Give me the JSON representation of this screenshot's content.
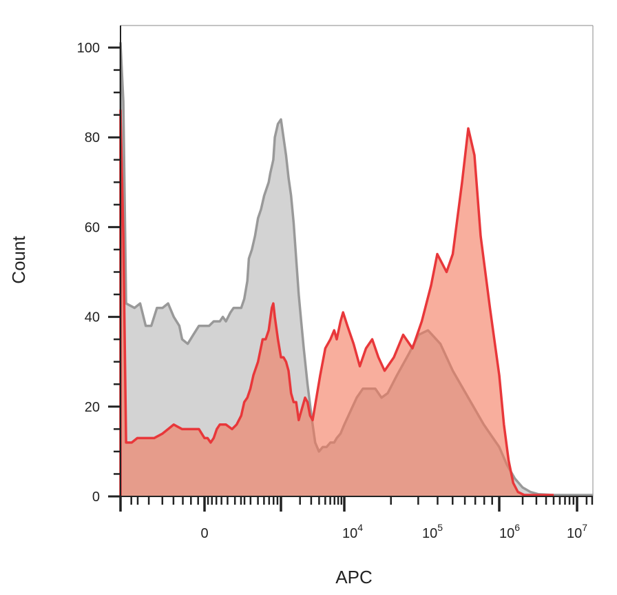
{
  "chart_data": {
    "type": "area",
    "title": "",
    "xlabel": "APC",
    "ylabel": "Count",
    "x_scale": "biexponential",
    "ylim": [
      0,
      105
    ],
    "y_ticks": [
      0,
      20,
      40,
      60,
      80,
      100
    ],
    "x_ticks": [
      {
        "base": "0",
        "exp": ""
      },
      {
        "base": "10",
        "exp": "4"
      },
      {
        "base": "10",
        "exp": "5"
      },
      {
        "base": "10",
        "exp": "6"
      },
      {
        "base": "10",
        "exp": "7"
      }
    ],
    "grid": false,
    "legend": "none",
    "series": [
      {
        "line_color": "#999999",
        "fill_color": "#d3d3d3",
        "points": [
          [
            -0.6,
            0
          ],
          [
            -0.6,
            101
          ],
          [
            -0.58,
            88
          ],
          [
            -0.56,
            43
          ],
          [
            -0.5,
            42
          ],
          [
            -0.46,
            43
          ],
          [
            -0.42,
            38
          ],
          [
            -0.38,
            38
          ],
          [
            -0.34,
            42
          ],
          [
            -0.3,
            42
          ],
          [
            -0.26,
            43
          ],
          [
            -0.22,
            40
          ],
          [
            -0.18,
            38
          ],
          [
            -0.16,
            35
          ],
          [
            -0.12,
            34
          ],
          [
            -0.08,
            36
          ],
          [
            -0.04,
            38
          ],
          [
            0,
            38
          ],
          [
            0.06,
            38
          ],
          [
            0.12,
            39
          ],
          [
            0.16,
            39
          ],
          [
            0.2,
            39
          ],
          [
            0.24,
            40
          ],
          [
            0.28,
            39
          ],
          [
            0.34,
            41
          ],
          [
            0.38,
            42
          ],
          [
            0.44,
            42
          ],
          [
            0.48,
            42
          ],
          [
            0.52,
            44
          ],
          [
            0.56,
            48
          ],
          [
            0.58,
            53
          ],
          [
            0.62,
            55
          ],
          [
            0.66,
            58
          ],
          [
            0.7,
            62
          ],
          [
            0.74,
            64
          ],
          [
            0.78,
            67
          ],
          [
            0.82,
            69
          ],
          [
            0.84,
            70
          ],
          [
            0.86,
            72
          ],
          [
            0.9,
            75
          ],
          [
            0.92,
            80
          ],
          [
            0.96,
            83
          ],
          [
            1.0,
            84
          ],
          [
            1.04,
            80
          ],
          [
            1.08,
            76
          ],
          [
            1.12,
            71
          ],
          [
            1.16,
            67
          ],
          [
            1.2,
            61
          ],
          [
            1.24,
            53
          ],
          [
            1.28,
            45
          ],
          [
            1.32,
            39
          ],
          [
            1.36,
            33
          ],
          [
            1.42,
            25
          ],
          [
            1.48,
            18
          ],
          [
            1.54,
            12
          ],
          [
            1.6,
            10
          ],
          [
            1.66,
            11
          ],
          [
            1.72,
            11
          ],
          [
            1.78,
            12
          ],
          [
            1.84,
            12
          ],
          [
            1.88,
            13
          ],
          [
            1.94,
            14
          ],
          [
            2.0,
            16
          ],
          [
            2.04,
            19
          ],
          [
            2.08,
            22
          ],
          [
            2.12,
            24
          ],
          [
            2.16,
            24
          ],
          [
            2.2,
            24
          ],
          [
            2.24,
            22
          ],
          [
            2.28,
            23
          ],
          [
            2.34,
            27
          ],
          [
            2.42,
            32
          ],
          [
            2.48,
            36
          ],
          [
            2.54,
            37
          ],
          [
            2.62,
            34
          ],
          [
            2.7,
            28
          ],
          [
            2.8,
            22
          ],
          [
            2.9,
            16
          ],
          [
            3.0,
            11
          ],
          [
            3.1,
            7
          ],
          [
            3.2,
            4
          ],
          [
            3.3,
            2
          ],
          [
            3.4,
            1
          ],
          [
            3.5,
            0.5
          ],
          [
            3.7,
            0.3
          ],
          [
            4.2,
            0.3
          ],
          [
            4.5,
            0.3
          ]
        ]
      },
      {
        "line_color": "#e8373a",
        "fill_color": "rgba(244,120,92,0.6)",
        "points": [
          [
            -0.6,
            0
          ],
          [
            -0.6,
            86
          ],
          [
            -0.58,
            58
          ],
          [
            -0.56,
            12
          ],
          [
            -0.52,
            12
          ],
          [
            -0.48,
            13
          ],
          [
            -0.42,
            13
          ],
          [
            -0.36,
            13
          ],
          [
            -0.3,
            14
          ],
          [
            -0.26,
            15
          ],
          [
            -0.22,
            16
          ],
          [
            -0.16,
            15
          ],
          [
            -0.12,
            15
          ],
          [
            -0.08,
            15
          ],
          [
            -0.04,
            15
          ],
          [
            0,
            13
          ],
          [
            0.04,
            13
          ],
          [
            0.08,
            12
          ],
          [
            0.12,
            13
          ],
          [
            0.16,
            15
          ],
          [
            0.2,
            16
          ],
          [
            0.28,
            16
          ],
          [
            0.36,
            15
          ],
          [
            0.42,
            16
          ],
          [
            0.48,
            18
          ],
          [
            0.52,
            21
          ],
          [
            0.56,
            22
          ],
          [
            0.6,
            24
          ],
          [
            0.64,
            27
          ],
          [
            0.7,
            30
          ],
          [
            0.76,
            35
          ],
          [
            0.8,
            35
          ],
          [
            0.84,
            37
          ],
          [
            0.88,
            42
          ],
          [
            0.9,
            43
          ],
          [
            0.92,
            40
          ],
          [
            0.96,
            35
          ],
          [
            1.0,
            31
          ],
          [
            1.04,
            31
          ],
          [
            1.08,
            30
          ],
          [
            1.12,
            28
          ],
          [
            1.16,
            23
          ],
          [
            1.2,
            21
          ],
          [
            1.24,
            21
          ],
          [
            1.28,
            17
          ],
          [
            1.3,
            18
          ],
          [
            1.34,
            20
          ],
          [
            1.38,
            22
          ],
          [
            1.42,
            21
          ],
          [
            1.46,
            18
          ],
          [
            1.5,
            17
          ],
          [
            1.56,
            22
          ],
          [
            1.62,
            27
          ],
          [
            1.7,
            33
          ],
          [
            1.78,
            35
          ],
          [
            1.84,
            37
          ],
          [
            1.88,
            35
          ],
          [
            1.94,
            39
          ],
          [
            1.98,
            41
          ],
          [
            2.02,
            38
          ],
          [
            2.06,
            34
          ],
          [
            2.1,
            29
          ],
          [
            2.14,
            33
          ],
          [
            2.18,
            35
          ],
          [
            2.22,
            31
          ],
          [
            2.26,
            28
          ],
          [
            2.32,
            31
          ],
          [
            2.38,
            36
          ],
          [
            2.44,
            33
          ],
          [
            2.5,
            39
          ],
          [
            2.56,
            47
          ],
          [
            2.6,
            54
          ],
          [
            2.66,
            50
          ],
          [
            2.7,
            54
          ],
          [
            2.76,
            70
          ],
          [
            2.8,
            82
          ],
          [
            2.84,
            76
          ],
          [
            2.88,
            58
          ],
          [
            2.94,
            42
          ],
          [
            3.0,
            27
          ],
          [
            3.06,
            16
          ],
          [
            3.12,
            8
          ],
          [
            3.18,
            3
          ],
          [
            3.24,
            1
          ],
          [
            3.32,
            0.3
          ],
          [
            3.5,
            0.3
          ],
          [
            3.7,
            0.3
          ]
        ]
      }
    ]
  }
}
